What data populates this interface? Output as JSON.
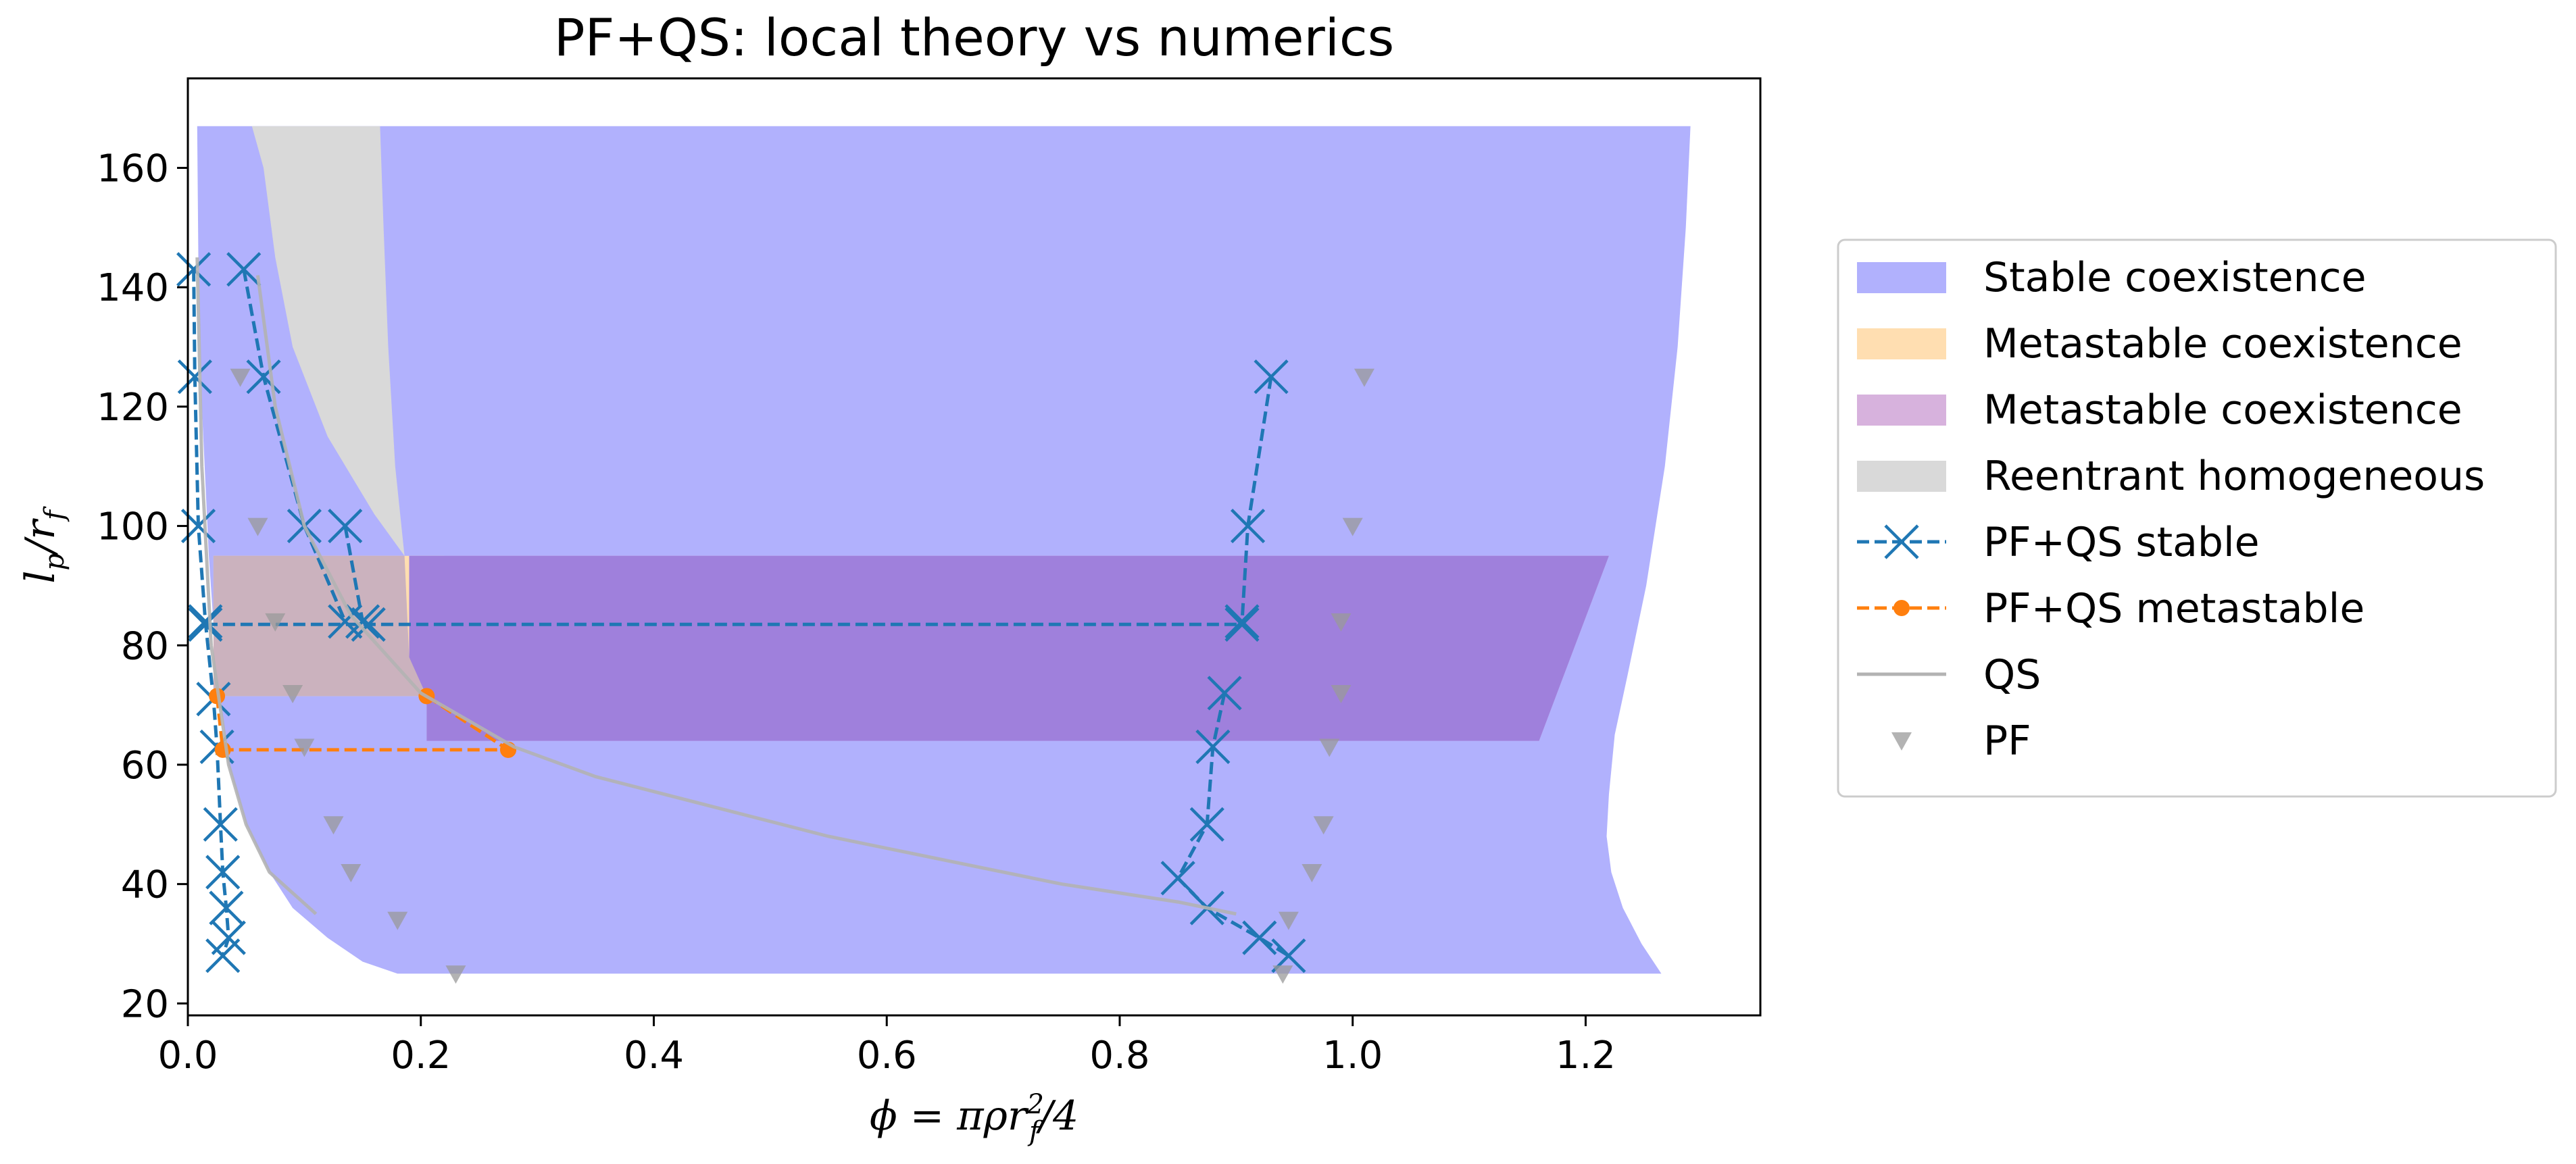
{
  "chart_data": {
    "type": "scatter",
    "title": "PF+QS: local theory vs numerics",
    "xlabel": "ϕ = πρr",
    "xlabel_sup": "2",
    "xlabel_sub": "f",
    "xlabel_tail": "/4",
    "ylabel": "l",
    "ylabel_sub1": "p",
    "ylabel_mid": "/r",
    "ylabel_sub2": "f",
    "xlim": [
      0.0,
      1.35
    ],
    "ylim": [
      18,
      175
    ],
    "xticks": [
      0.0,
      0.2,
      0.4,
      0.6,
      0.8,
      1.0,
      1.2
    ],
    "xtick_labels": [
      "0.0",
      "0.2",
      "0.4",
      "0.6",
      "0.8",
      "1.0",
      "1.2"
    ],
    "yticks": [
      20,
      40,
      60,
      80,
      100,
      120,
      140,
      160
    ],
    "ytick_labels": [
      "20",
      "40",
      "60",
      "80",
      "100",
      "120",
      "140",
      "160"
    ],
    "grid": false,
    "legend_position": "right, outside plot",
    "regions": [
      {
        "name": "Stable coexistence",
        "color": "#b1b1fd",
        "polygon": [
          [
            0.008,
            167
          ],
          [
            1.29,
            167
          ],
          [
            1.286,
            150
          ],
          [
            1.279,
            130
          ],
          [
            1.268,
            110
          ],
          [
            1.252,
            90
          ],
          [
            1.236,
            75
          ],
          [
            1.225,
            65
          ],
          [
            1.22,
            55
          ],
          [
            1.218,
            48
          ],
          [
            1.222,
            42
          ],
          [
            1.232,
            36
          ],
          [
            1.248,
            30
          ],
          [
            1.265,
            25
          ],
          [
            0.18,
            25
          ],
          [
            0.15,
            27
          ],
          [
            0.12,
            31
          ],
          [
            0.09,
            36
          ],
          [
            0.07,
            42
          ],
          [
            0.05,
            50
          ],
          [
            0.035,
            60
          ],
          [
            0.025,
            75
          ],
          [
            0.018,
            95
          ],
          [
            0.012,
            120
          ],
          [
            0.009,
            145
          ]
        ]
      },
      {
        "name": "Metastable coexistence",
        "color": "#ffdeb1",
        "polygon": [
          [
            0.022,
            95
          ],
          [
            0.22,
            95
          ],
          [
            0.23,
            88
          ],
          [
            0.26,
            82
          ],
          [
            0.3,
            78
          ],
          [
            0.35,
            75
          ],
          [
            0.4,
            73
          ],
          [
            0.45,
            71.5
          ],
          [
            0.022,
            71.5
          ]
        ]
      },
      {
        "name": "Metastable coexistence",
        "color": "#d7b2dd",
        "polygon": [
          [
            0.19,
            95
          ],
          [
            1.22,
            95
          ],
          [
            1.16,
            64
          ],
          [
            0.205,
            64
          ],
          [
            0.205,
            70
          ],
          [
            0.19,
            78
          ]
        ]
      },
      {
        "name": "Reentrant homogeneous",
        "color": "#d9d9d9",
        "polygon": [
          [
            0.055,
            167
          ],
          [
            0.165,
            167
          ],
          [
            0.168,
            150
          ],
          [
            0.172,
            130
          ],
          [
            0.178,
            110
          ],
          [
            0.186,
            95
          ],
          [
            0.16,
            102
          ],
          [
            0.12,
            115
          ],
          [
            0.09,
            130
          ],
          [
            0.075,
            145
          ],
          [
            0.065,
            160
          ]
        ]
      }
    ],
    "overlays": [
      {
        "color": "#9f80dc",
        "polygon": [
          [
            0.19,
            95
          ],
          [
            1.22,
            95
          ],
          [
            1.16,
            64
          ],
          [
            0.205,
            64
          ],
          [
            0.205,
            70
          ],
          [
            0.19,
            78
          ]
        ]
      },
      {
        "color": "#cbb2be",
        "polygon": [
          [
            0.022,
            95
          ],
          [
            0.186,
            95
          ],
          [
            0.19,
            78
          ],
          [
            0.205,
            71.5
          ],
          [
            0.022,
            71.5
          ]
        ]
      }
    ],
    "series": [
      {
        "name": "PF+QS stable",
        "color": "#1f77b4",
        "marker": "x",
        "linestyle": "dashed",
        "segments": [
          [
            [
              0.005,
              143
            ],
            [
              0.006,
              125
            ],
            [
              0.009,
              100
            ],
            [
              0.015,
              84
            ],
            [
              0.022,
              71
            ],
            [
              0.025,
              63
            ],
            [
              0.028,
              50
            ],
            [
              0.03,
              42
            ],
            [
              0.033,
              36
            ],
            [
              0.035,
              31
            ],
            [
              0.03,
              28
            ]
          ],
          [
            [
              0.048,
              143
            ],
            [
              0.065,
              125
            ],
            [
              0.1,
              100
            ],
            [
              0.135,
              84
            ]
          ],
          [
            [
              0.135,
              100
            ],
            [
              0.15,
              84
            ]
          ],
          [
            [
              0.015,
              83.5
            ],
            [
              0.155,
              83.5
            ],
            [
              0.905,
              83.5
            ]
          ],
          [
            [
              0.93,
              125
            ],
            [
              0.91,
              100
            ],
            [
              0.905,
              84
            ]
          ],
          [
            [
              0.89,
              72
            ],
            [
              0.88,
              63
            ],
            [
              0.875,
              50
            ],
            [
              0.85,
              41
            ],
            [
              0.875,
              36
            ],
            [
              0.92,
              31
            ],
            [
              0.945,
              28
            ]
          ]
        ]
      },
      {
        "name": "PF+QS metastable",
        "color": "#ff7f0e",
        "marker": "o",
        "linestyle": "dashed",
        "segments": [
          [
            [
              0.025,
              71.5
            ],
            [
              0.03,
              62.5
            ],
            [
              0.275,
              62.5
            ]
          ],
          [
            [
              0.205,
              71.5
            ],
            [
              0.275,
              62.5
            ]
          ]
        ]
      },
      {
        "name": "QS",
        "color": "#b3b3b3",
        "linestyle": "solid",
        "segments": [
          [
            [
              0.06,
              142
            ],
            [
              0.075,
              120
            ],
            [
              0.1,
              100
            ],
            [
              0.14,
              85
            ],
            [
              0.2,
              72
            ],
            [
              0.28,
              63
            ],
            [
              0.35,
              58
            ],
            [
              0.45,
              53
            ],
            [
              0.55,
              48
            ],
            [
              0.65,
              44
            ],
            [
              0.75,
              40
            ],
            [
              0.85,
              37
            ],
            [
              0.9,
              35
            ]
          ],
          [
            [
              0.008,
              145
            ],
            [
              0.012,
              110
            ],
            [
              0.02,
              80
            ],
            [
              0.035,
              60
            ],
            [
              0.05,
              50
            ],
            [
              0.07,
              42
            ],
            [
              0.11,
              35
            ]
          ]
        ]
      },
      {
        "name": "PF",
        "color": "#999999",
        "marker": "v",
        "points": [
          [
            0.045,
            125
          ],
          [
            0.06,
            100
          ],
          [
            0.075,
            84
          ],
          [
            0.09,
            72
          ],
          [
            0.1,
            63
          ],
          [
            0.125,
            50
          ],
          [
            0.14,
            42
          ],
          [
            0.18,
            34
          ],
          [
            0.23,
            25
          ],
          [
            1.01,
            125
          ],
          [
            1.0,
            100
          ],
          [
            0.99,
            84
          ],
          [
            0.99,
            72
          ],
          [
            0.98,
            63
          ],
          [
            0.975,
            50
          ],
          [
            0.965,
            42
          ],
          [
            0.945,
            34
          ],
          [
            0.94,
            25
          ]
        ]
      }
    ],
    "legend": [
      {
        "label": "Stable coexistence",
        "kind": "patch",
        "color": "#b1b1fd"
      },
      {
        "label": "Metastable coexistence",
        "kind": "patch",
        "color": "#ffdeb1"
      },
      {
        "label": "Metastable coexistence",
        "kind": "patch",
        "color": "#d7b2dd"
      },
      {
        "label": "Reentrant homogeneous",
        "kind": "patch",
        "color": "#d9d9d9"
      },
      {
        "label": "PF+QS stable",
        "kind": "line-x",
        "color": "#1f77b4"
      },
      {
        "label": "PF+QS metastable",
        "kind": "line-o",
        "color": "#ff7f0e"
      },
      {
        "label": "QS",
        "kind": "line",
        "color": "#b3b3b3"
      },
      {
        "label": "PF",
        "kind": "tri",
        "color": "#999999"
      }
    ]
  }
}
